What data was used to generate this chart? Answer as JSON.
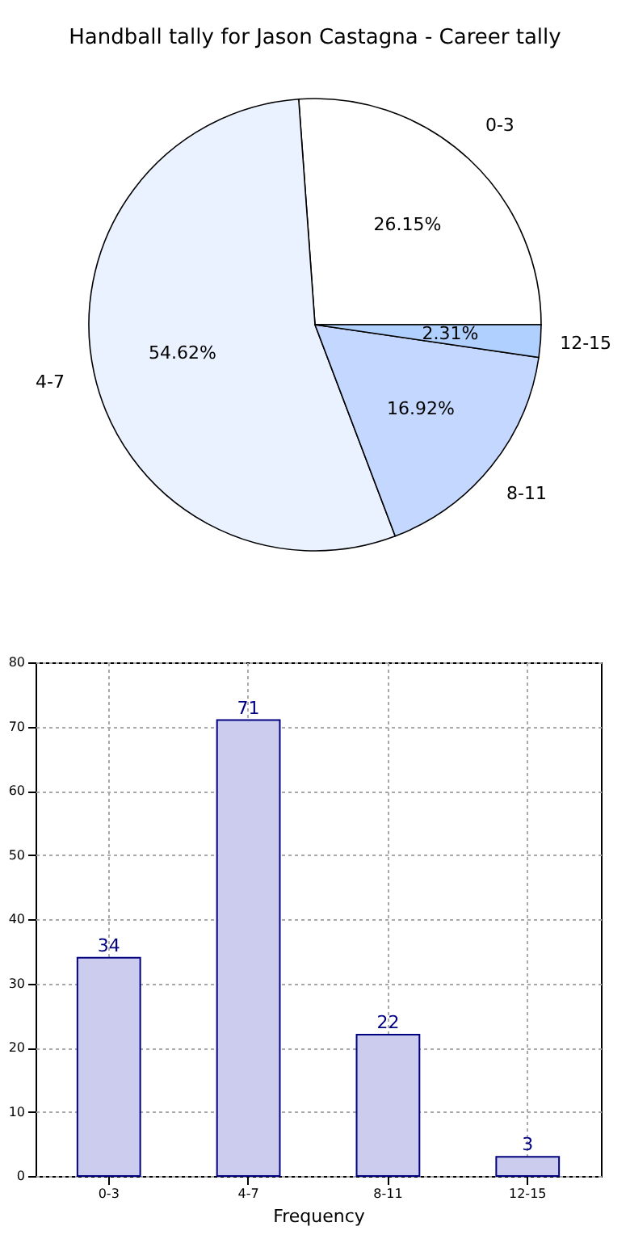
{
  "chart_data": [
    {
      "type": "pie",
      "title": "Handball tally for Jason Castagna - Career tally",
      "categories": [
        "0-3",
        "4-7",
        "8-11",
        "12-15"
      ],
      "values": [
        26.15,
        54.62,
        16.92,
        2.31
      ],
      "colors": [
        "#ffffff",
        "#eaf1ff",
        "#c4d8ff",
        "#b0d0ff"
      ],
      "value_labels": [
        "26.15%",
        "54.62%",
        "16.92%",
        "2.31%"
      ]
    },
    {
      "type": "bar",
      "categories": [
        "0-3",
        "4-7",
        "8-11",
        "12-15"
      ],
      "values": [
        34,
        71,
        22,
        3
      ],
      "color": "#ccccee",
      "ylim": [
        0,
        80
      ],
      "yticks": [
        0,
        10,
        20,
        30,
        40,
        50,
        60,
        70,
        80
      ],
      "grid": true,
      "xlabel": "Frequency",
      "data_labels": true
    }
  ]
}
